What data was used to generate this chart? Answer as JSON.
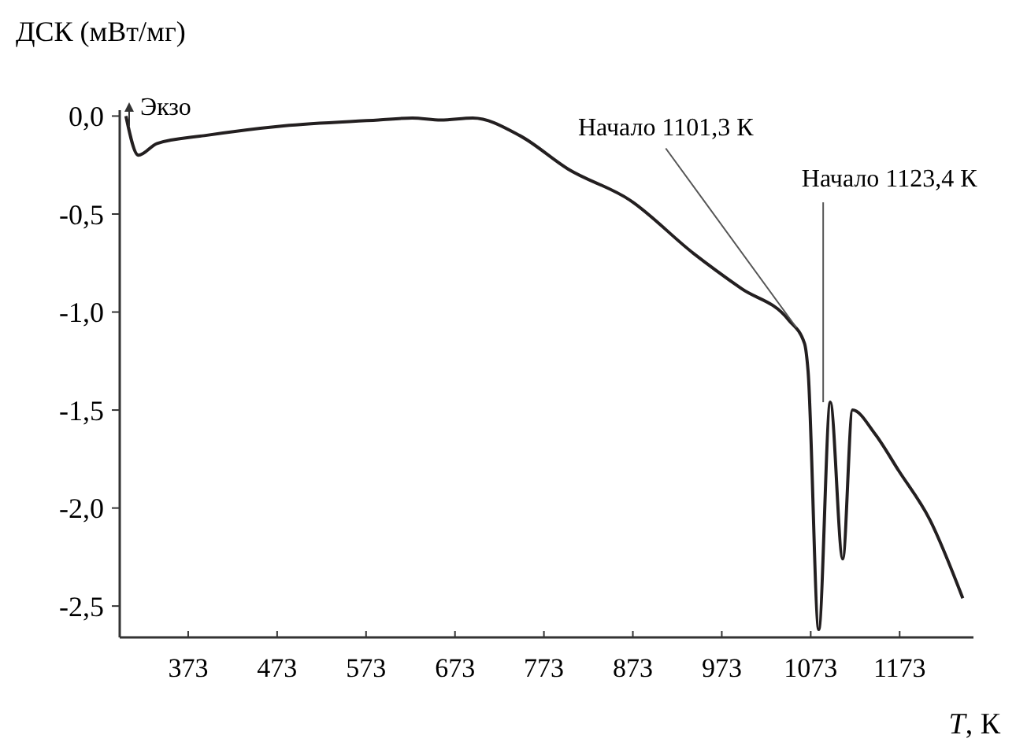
{
  "chart_data": {
    "type": "line",
    "ylabel": "ДСК (мВт/мг)",
    "xlabel": "T, К",
    "x": [
      303,
      317,
      338,
      391,
      480,
      587,
      625,
      657,
      693,
      746,
      800,
      870,
      941,
      995,
      1048,
      1066,
      1070,
      1082,
      1095,
      1109,
      1120,
      1145,
      1172,
      1207,
      1244
    ],
    "values": [
      0.0,
      -0.2,
      -0.14,
      -0.1,
      -0.05,
      -0.02,
      -0.01,
      -0.02,
      -0.01,
      -0.1,
      -0.27,
      -0.43,
      -0.7,
      -0.88,
      -1.04,
      -1.16,
      -1.3,
      -2.62,
      -1.46,
      -2.26,
      -1.5,
      -1.62,
      -1.81,
      -2.06,
      -2.46
    ],
    "color": "#231f20",
    "line_style": "solid",
    "marker": "none",
    "xlim": [
      296,
      1256
    ],
    "ylim": [
      -2.66,
      0.03
    ],
    "xticks": [
      373,
      473,
      573,
      673,
      773,
      873,
      973,
      1073,
      1173
    ],
    "yticks": [
      {
        "value": 0,
        "label": "0,0"
      },
      {
        "value": -0.5,
        "label": "-0,5"
      },
      {
        "value": -1,
        "label": "-1,0"
      },
      {
        "value": -1.5,
        "label": "-1,5"
      },
      {
        "value": -2,
        "label": "-2,0"
      },
      {
        "value": -2.5,
        "label": "-2,5"
      }
    ],
    "annotations": [
      "Экзо",
      {
        "text": "Начало 1101,3 К",
        "x": 1057,
        "y": -1.08
      },
      {
        "text": "Начало 1123,4 К",
        "x": 1087,
        "y": -1.46
      }
    ]
  }
}
